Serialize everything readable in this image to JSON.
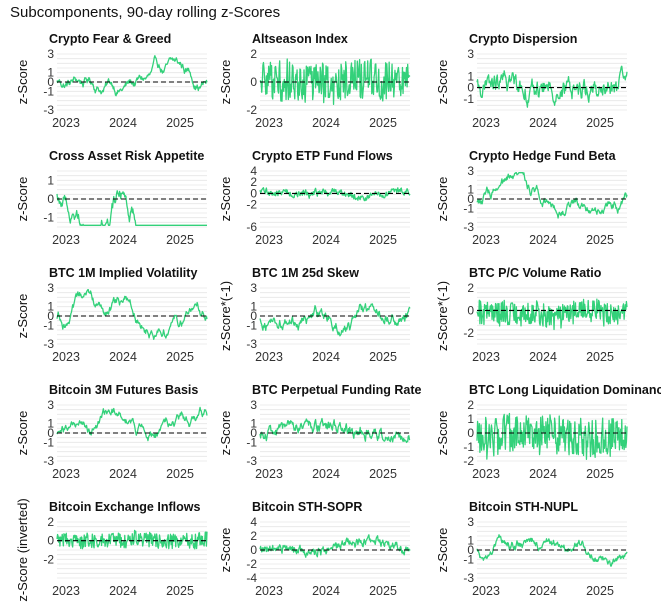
{
  "page_title": "Subcomponents, 90-day rolling z-Scores",
  "line_color": "#33d17a",
  "grid_color": "#e6e6e6",
  "zero_line_color": "#000000",
  "x_ticks": [
    "2023",
    "2024",
    "2025"
  ],
  "chart_data": [
    {
      "type": "line",
      "title": "Crypto Fear & Greed",
      "ylabel": "z-Score",
      "yticks": [
        "3",
        "1",
        "0",
        "-1",
        "-3"
      ],
      "ylim": [
        -3,
        3
      ],
      "xlim": [
        "2022-10",
        "2025-06"
      ],
      "volatility": 0.45,
      "smoothness": 0.9
    },
    {
      "type": "line",
      "title": "Altseason Index",
      "ylabel": "z-Score",
      "yticks": [
        "2",
        "0",
        "-2"
      ],
      "ylim": [
        -2,
        2
      ],
      "xlim": [
        "2022-10",
        "2025-06"
      ],
      "volatility": 1.6,
      "smoothness": 0.2
    },
    {
      "type": "line",
      "title": "Crypto Dispersion",
      "ylabel": "z-Score",
      "yticks": [
        "3",
        "1",
        "0",
        "-1"
      ],
      "ylim": [
        -2,
        3
      ],
      "xlim": [
        "2022-10",
        "2025-06"
      ],
      "volatility": 0.8,
      "smoothness": 0.6
    },
    {
      "type": "line",
      "title": "Cross Asset Risk Appetite",
      "ylabel": "z-Score",
      "yticks": [
        "1",
        "0",
        "-1"
      ],
      "ylim": [
        -1.5,
        1.5
      ],
      "xlim": [
        "2022-10",
        "2025-06"
      ],
      "volatility": 0.35,
      "smoothness": 0.92
    },
    {
      "type": "line",
      "title": "Crypto ETP Fund Flows",
      "ylabel": "z-Score",
      "yticks": [
        "4",
        "2",
        "0",
        "-2",
        "-6"
      ],
      "ylim": [
        -6,
        4
      ],
      "xlim": [
        "2022-10",
        "2025-06"
      ],
      "volatility": 0.6,
      "smoothness": 0.5
    },
    {
      "type": "line",
      "title": "Crypto Hedge Fund Beta",
      "ylabel": "z-Score",
      "yticks": [
        "3",
        "1",
        "0",
        "-1",
        "-3"
      ],
      "ylim": [
        -3,
        3
      ],
      "xlim": [
        "2022-10",
        "2025-06"
      ],
      "volatility": 0.5,
      "smoothness": 0.85
    },
    {
      "type": "line",
      "title": "BTC 1M Implied Volatility",
      "ylabel": "z-Score",
      "yticks": [
        "3",
        "1",
        "0",
        "-1",
        "-3"
      ],
      "ylim": [
        -3,
        3
      ],
      "xlim": [
        "2022-10",
        "2025-06"
      ],
      "volatility": 0.5,
      "smoothness": 0.88
    },
    {
      "type": "line",
      "title": "BTC 1M 25d Skew",
      "ylabel": "z-Score*(-1)",
      "yticks": [
        "3",
        "1",
        "0",
        "-1",
        "-3"
      ],
      "ylim": [
        -3,
        3
      ],
      "xlim": [
        "2022-10",
        "2025-06"
      ],
      "volatility": 0.55,
      "smoothness": 0.8
    },
    {
      "type": "line",
      "title": "BTC P/C Volume Ratio",
      "ylabel": "z-Score*(-1)",
      "yticks": [
        "2",
        "0",
        "-2"
      ],
      "ylim": [
        -3,
        2
      ],
      "xlim": [
        "2022-10",
        "2025-06"
      ],
      "volatility": 1.2,
      "smoothness": 0.2
    },
    {
      "type": "line",
      "title": "Bitcoin 3M Futures Basis",
      "ylabel": "z-Score",
      "yticks": [
        "3",
        "1",
        "0",
        "-1",
        "-3"
      ],
      "ylim": [
        -3,
        3
      ],
      "xlim": [
        "2022-10",
        "2025-06"
      ],
      "volatility": 0.45,
      "smoothness": 0.9
    },
    {
      "type": "line",
      "title": "BTC Perpetual Funding Rate",
      "ylabel": "z-Score",
      "yticks": [
        "3",
        "1",
        "0",
        "-1",
        "-3"
      ],
      "ylim": [
        -3,
        3
      ],
      "xlim": [
        "2022-10",
        "2025-06"
      ],
      "volatility": 0.5,
      "smoothness": 0.55
    },
    {
      "type": "line",
      "title": "BTC Long Liquidation Dominance",
      "ylabel": "z-Score",
      "yticks": [
        "2",
        "1",
        "0",
        "-1",
        "-2"
      ],
      "ylim": [
        -2,
        2
      ],
      "xlim": [
        "2022-10",
        "2025-06"
      ],
      "volatility": 1.7,
      "smoothness": 0.05
    },
    {
      "type": "line",
      "title": "Bitcoin Exchange Inflows",
      "ylabel": "z-Score (inverted)",
      "yticks": [
        "2",
        "0",
        "-2"
      ],
      "ylim": [
        -4,
        2
      ],
      "xlim": [
        "2022-10",
        "2025-06"
      ],
      "volatility": 0.9,
      "smoothness": 0.25
    },
    {
      "type": "line",
      "title": "Bitcoin STH-SOPR",
      "ylabel": "z-Score",
      "yticks": [
        "4",
        "2",
        "0",
        "-2",
        "-4"
      ],
      "ylim": [
        -4,
        4
      ],
      "xlim": [
        "2022-10",
        "2025-06"
      ],
      "volatility": 0.55,
      "smoothness": 0.5
    },
    {
      "type": "line",
      "title": "Bitcoin STH-NUPL",
      "ylabel": "z-Score",
      "yticks": [
        "3",
        "1",
        "0",
        "-1",
        "-3"
      ],
      "ylim": [
        -3,
        3
      ],
      "xlim": [
        "2022-10",
        "2025-06"
      ],
      "volatility": 0.45,
      "smoothness": 0.9
    }
  ]
}
